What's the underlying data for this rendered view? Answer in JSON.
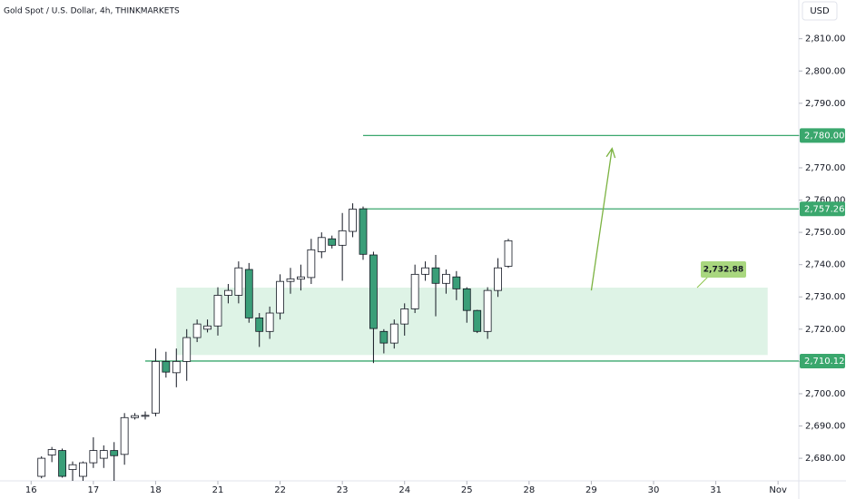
{
  "chart_data": {
    "type": "candlestick",
    "title": "Gold Spot / U.S. Dollar, 4h, THINKMARKETS",
    "currency": "USD",
    "up_color": "#ffffff",
    "down_color": "#3a9e78",
    "x": [
      0,
      1,
      2,
      3,
      4,
      5,
      6,
      7,
      8,
      9,
      10,
      11,
      12,
      13,
      14,
      15,
      16,
      17,
      18,
      19,
      20,
      21,
      22,
      23,
      24,
      25,
      26,
      27,
      28,
      29,
      30,
      31,
      32,
      33,
      34,
      35,
      36,
      37,
      38,
      39,
      40,
      41,
      42,
      43,
      44,
      45
    ],
    "open": [
      2674.4,
      2681,
      2682.4,
      2676.5,
      2674.4,
      2678.6,
      2680,
      2682.4,
      2681.2,
      2692.6,
      2693,
      2694,
      2710,
      2706.5,
      2710,
      2717.4,
      2720,
      2721,
      2730.5,
      2730.5,
      2738.5,
      2723.5,
      2719.3,
      2725,
      2734.8,
      2735.5,
      2736,
      2744,
      2748,
      2746,
      2750.3,
      2757.3,
      2743,
      2719.3,
      2715.7,
      2721.6,
      2726.3,
      2737,
      2739,
      2734.2,
      2736.2,
      2732.5,
      2725.8,
      2719.3,
      2732,
      2739.5
    ],
    "high": [
      2680.6,
      2683.5,
      2683,
      2679,
      2679,
      2686.5,
      2684,
      2685,
      2694,
      2694,
      2694.5,
      2714,
      2713,
      2714,
      2720,
      2723,
      2723,
      2733,
      2734,
      2741,
      2740.5,
      2725,
      2727,
      2737,
      2739,
      2740,
      2748,
      2750,
      2749,
      2756,
      2759,
      2758,
      2744,
      2720,
      2723,
      2728,
      2740,
      2741,
      2743,
      2738.5,
      2738,
      2733,
      2726,
      2733,
      2742,
      2748
    ],
    "low": [
      2673.8,
      2678.8,
      2674,
      2673,
      2673,
      2677,
      2677,
      2673,
      2678,
      2692,
      2692,
      2693,
      2705,
      2702,
      2704,
      2716,
      2719,
      2718,
      2728,
      2728,
      2722,
      2714.5,
      2717,
      2723,
      2731,
      2732,
      2734,
      2742,
      2745,
      2735,
      2748.5,
      2741.5,
      2709.5,
      2712.5,
      2714,
      2718,
      2725,
      2735,
      2724,
      2731,
      2729,
      2722,
      2718.8,
      2717,
      2730,
      2739
    ],
    "close": [
      2680,
      2682.7,
      2674.4,
      2678,
      2678.6,
      2682.4,
      2682.4,
      2680.8,
      2692.6,
      2693.2,
      2693.3,
      2710,
      2706.7,
      2710,
      2717.4,
      2721.6,
      2721,
      2730.5,
      2732,
      2739,
      2723.5,
      2719.3,
      2725,
      2734.8,
      2735.6,
      2736.2,
      2744.6,
      2748.4,
      2746,
      2750.5,
      2757.2,
      2743.2,
      2720.2,
      2715.7,
      2721.6,
      2726.3,
      2737,
      2739,
      2734.2,
      2737,
      2732.5,
      2725.8,
      2719.3,
      2732,
      2739,
      2747.4
    ],
    "xlim": [
      -4,
      73
    ],
    "ylim": [
      2673,
      2822
    ],
    "xticks": [
      {
        "value": -1,
        "label": "16"
      },
      {
        "value": 5,
        "label": "17"
      },
      {
        "value": 11,
        "label": "18"
      },
      {
        "value": 17,
        "label": "21"
      },
      {
        "value": 23,
        "label": "22"
      },
      {
        "value": 29,
        "label": "23"
      },
      {
        "value": 35,
        "label": "24"
      },
      {
        "value": 41,
        "label": "25"
      },
      {
        "value": 47,
        "label": "28"
      },
      {
        "value": 53,
        "label": "29"
      },
      {
        "value": 59,
        "label": "30"
      },
      {
        "value": 65,
        "label": "31"
      },
      {
        "value": 71,
        "label": "Nov"
      }
    ],
    "yticks": [
      {
        "value": 2680,
        "label": "2,680.00"
      },
      {
        "value": 2690,
        "label": "2,690.00"
      },
      {
        "value": 2700,
        "label": "2,700.00"
      },
      {
        "value": 2710,
        "label": "2,710.00"
      },
      {
        "value": 2720,
        "label": "2,720.00"
      },
      {
        "value": 2730,
        "label": "2,730.00"
      },
      {
        "value": 2740,
        "label": "2,740.00"
      },
      {
        "value": 2750,
        "label": "2,750.00"
      },
      {
        "value": 2760,
        "label": "2,760.00"
      },
      {
        "value": 2770,
        "label": "2,770.00"
      },
      {
        "value": 2780,
        "label": "2,780.00"
      },
      {
        "value": 2790,
        "label": "2,790.00"
      },
      {
        "value": 2800,
        "label": "2,800.00"
      },
      {
        "value": 2810,
        "label": "2,810.00"
      }
    ],
    "levels": [
      {
        "value": 2780,
        "label": "2,780.00",
        "from": 31
      },
      {
        "value": 2757.26,
        "label": "2,757.26",
        "from": 31
      },
      {
        "value": 2710.12,
        "label": "2,710.12",
        "from": 10
      }
    ],
    "zone": {
      "x": [
        13,
        70
      ],
      "values": [
        2712,
        2732.88
      ],
      "label": "2,732.88",
      "label_x": 66,
      "color": "#d6f0e0"
    },
    "arrow": {
      "x": [
        53,
        55
      ],
      "y": [
        2732,
        2776
      ],
      "color": "#7cb342"
    },
    "level_color": "#3aa76d"
  }
}
